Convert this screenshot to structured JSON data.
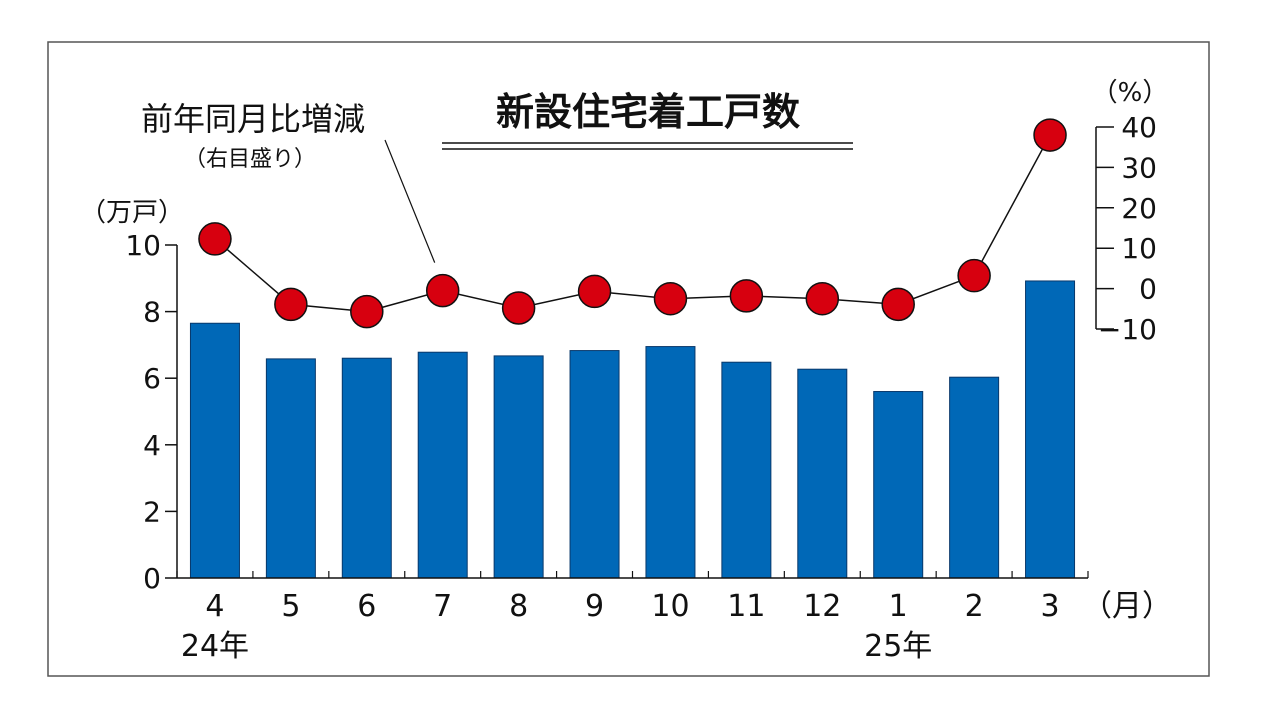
{
  "chart_data": {
    "type": "bar",
    "title": "新設住宅着工戸数",
    "categories": [
      "4",
      "5",
      "6",
      "7",
      "8",
      "9",
      "10",
      "11",
      "12",
      "1",
      "2",
      "3"
    ],
    "x_unit": "（月）",
    "year_labels": [
      {
        "label": "24年",
        "category": "4"
      },
      {
        "label": "25年",
        "category": "1"
      }
    ],
    "series": [
      {
        "type": "bar",
        "axis": "left",
        "values": [
          7.65,
          6.58,
          6.6,
          6.78,
          6.67,
          6.83,
          6.95,
          6.48,
          6.27,
          5.6,
          6.03,
          8.92
        ],
        "color": "#0068b7"
      },
      {
        "type": "line",
        "axis": "right",
        "name": "前年同月比増減",
        "values": [
          12.3,
          -3.9,
          -5.7,
          -0.5,
          -4.8,
          -0.7,
          -2.5,
          -1.8,
          -2.5,
          -3.9,
          3.2,
          38.0
        ],
        "color": "#d7000f"
      }
    ],
    "left_axis": {
      "unit": "（万戸）",
      "ylim": [
        0,
        10
      ],
      "ticks": [
        "0",
        "2",
        "4",
        "6",
        "8",
        "10"
      ]
    },
    "right_axis": {
      "unit": "（%）",
      "ylim": [
        -10,
        40
      ],
      "ticks": [
        "−10",
        "0",
        "10",
        "20",
        "30",
        "40"
      ]
    },
    "annotation": {
      "text": "前年同月比増減",
      "subtext": "（右目盛り）",
      "points_to_category": "7"
    },
    "grid": false
  }
}
